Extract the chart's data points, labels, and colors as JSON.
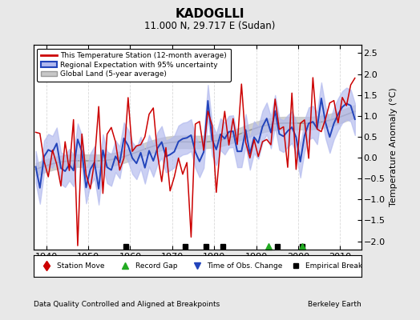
{
  "title": "KADOGLLI",
  "subtitle": "11.000 N, 29.717 E (Sudan)",
  "xlabel_bottom": "Data Quality Controlled and Aligned at Breakpoints",
  "xlabel_right": "Berkeley Earth",
  "ylabel_right": "Temperature Anomaly (°C)",
  "xlim": [
    1937,
    2015
  ],
  "ylim": [
    -2.2,
    2.7
  ],
  "yticks": [
    -2,
    -1.5,
    -1,
    -0.5,
    0,
    0.5,
    1,
    1.5,
    2,
    2.5
  ],
  "xticks": [
    1940,
    1950,
    1960,
    1970,
    1980,
    1990,
    2000,
    2010
  ],
  "background_color": "#e8e8e8",
  "plot_bg_color": "#ffffff",
  "station_line_color": "#cc0000",
  "regional_line_color": "#2244bb",
  "regional_fill_color": "#b0b8ee",
  "global_line_color": "#999999",
  "global_fill_color": "#c8c8c8",
  "legend_entries": [
    "This Temperature Station (12-month average)",
    "Regional Expectation with 95% uncertainty",
    "Global Land (5-year average)"
  ],
  "empirical_breaks": [
    1959,
    1973,
    1978,
    1982,
    1995,
    2001
  ],
  "record_gaps": [
    1993,
    2001
  ],
  "time_obs_changes": [],
  "station_move": []
}
